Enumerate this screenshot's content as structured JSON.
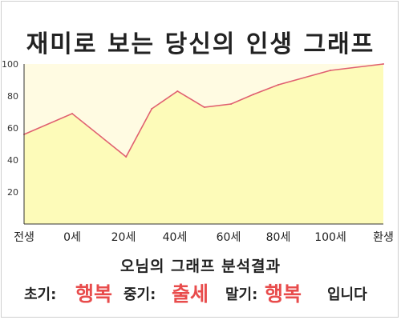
{
  "title": "재미로 보는 당신의 인생 그래프",
  "chart_data": {
    "type": "area",
    "x_categories": [
      "전생",
      "0세",
      "20세",
      "40세",
      "60세",
      "80세",
      "100세",
      "환생"
    ],
    "y_ticks": [
      "20",
      "40",
      "60",
      "80",
      "100"
    ],
    "ylim": [
      0,
      100
    ],
    "grid": false,
    "legend": "none",
    "points": [
      {
        "x": -1.0,
        "y": 56
      },
      {
        "x": 0.0,
        "y": 69
      },
      {
        "x": 1.05,
        "y": 42
      },
      {
        "x": 1.55,
        "y": 72
      },
      {
        "x": 2.05,
        "y": 83
      },
      {
        "x": 2.55,
        "y": 73
      },
      {
        "x": 3.05,
        "y": 75
      },
      {
        "x": 3.5,
        "y": 81
      },
      {
        "x": 4.0,
        "y": 87
      },
      {
        "x": 5.0,
        "y": 96
      },
      {
        "x": 6.0,
        "y": 100
      }
    ],
    "colors": {
      "fill": "#fdfbb9",
      "line": "#e06070",
      "background": "#fffbe2",
      "axis": "#333333"
    }
  },
  "result": {
    "heading": "오님의 그래프 분석결과",
    "early_label": "초기:",
    "early_value": "행복",
    "mid_label": "중기:",
    "mid_value": "출세",
    "late_label": "말기:",
    "late_value": "행복",
    "suffix": "입니다",
    "accent": "#e84c4c"
  }
}
